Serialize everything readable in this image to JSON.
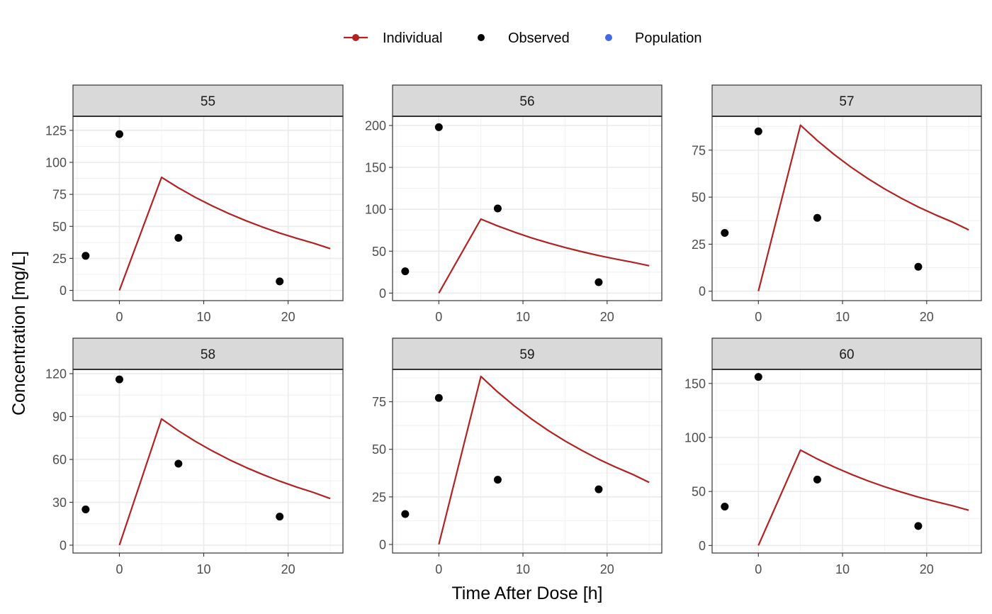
{
  "chart_data": {
    "type": "line",
    "layout": "facet-grid",
    "xlabel": "Time After Dose [h]",
    "ylabel": "Concentration [mg/L]",
    "legend_position": "top",
    "grid": true,
    "legend": [
      {
        "name": "Individual",
        "symbol": "line-point",
        "color": "#B22222"
      },
      {
        "name": "Observed",
        "symbol": "point",
        "color": "#000000"
      },
      {
        "name": "Population",
        "symbol": "point",
        "color": "#4169E1"
      }
    ],
    "xlim": [
      -5.5,
      26.5
    ],
    "xticks": [
      0,
      10,
      20
    ],
    "individual_curve_x": [
      0,
      5,
      7,
      9,
      11,
      13,
      15,
      17,
      19,
      21,
      23,
      25
    ],
    "individual_curve_y": [
      0,
      88.3,
      80.1,
      72.7,
      66.0,
      59.9,
      54.4,
      49.4,
      44.8,
      40.7,
      36.9,
      32.6
    ],
    "facets": [
      {
        "label": "55",
        "ylim": [
          -8,
          136
        ],
        "yticks": [
          0,
          25,
          50,
          75,
          100,
          125
        ],
        "yminor": 12.5,
        "observed": [
          [
            -4,
            27
          ],
          [
            0,
            122
          ],
          [
            7,
            41
          ],
          [
            19,
            7
          ]
        ]
      },
      {
        "label": "56",
        "ylim": [
          -9,
          211
        ],
        "yticks": [
          0,
          50,
          100,
          150,
          200
        ],
        "yminor": 25,
        "observed": [
          [
            -4,
            26
          ],
          [
            0,
            198
          ],
          [
            7,
            101
          ],
          [
            19,
            13
          ]
        ]
      },
      {
        "label": "57",
        "ylim": [
          -5,
          93
        ],
        "yticks": [
          0,
          25,
          50,
          75
        ],
        "yminor": 12.5,
        "observed": [
          [
            -4,
            31
          ],
          [
            0,
            85
          ],
          [
            7,
            39
          ],
          [
            19,
            13
          ]
        ]
      },
      {
        "label": "58",
        "ylim": [
          -5.5,
          123
        ],
        "yticks": [
          0,
          30,
          60,
          90,
          120
        ],
        "yminor": 15,
        "observed": [
          [
            -4,
            25
          ],
          [
            0,
            116
          ],
          [
            7,
            57
          ],
          [
            19,
            20
          ]
        ]
      },
      {
        "label": "59",
        "ylim": [
          -4.5,
          92
        ],
        "yticks": [
          0,
          25,
          50,
          75
        ],
        "yminor": 12.5,
        "observed": [
          [
            -4,
            16
          ],
          [
            0,
            77
          ],
          [
            7,
            34
          ],
          [
            19,
            29
          ]
        ]
      },
      {
        "label": "60",
        "ylim": [
          -7,
          163
        ],
        "yticks": [
          0,
          50,
          100,
          150
        ],
        "yminor": 25,
        "observed": [
          [
            -4,
            36
          ],
          [
            0,
            156
          ],
          [
            7,
            61
          ],
          [
            19,
            18
          ]
        ]
      }
    ]
  }
}
